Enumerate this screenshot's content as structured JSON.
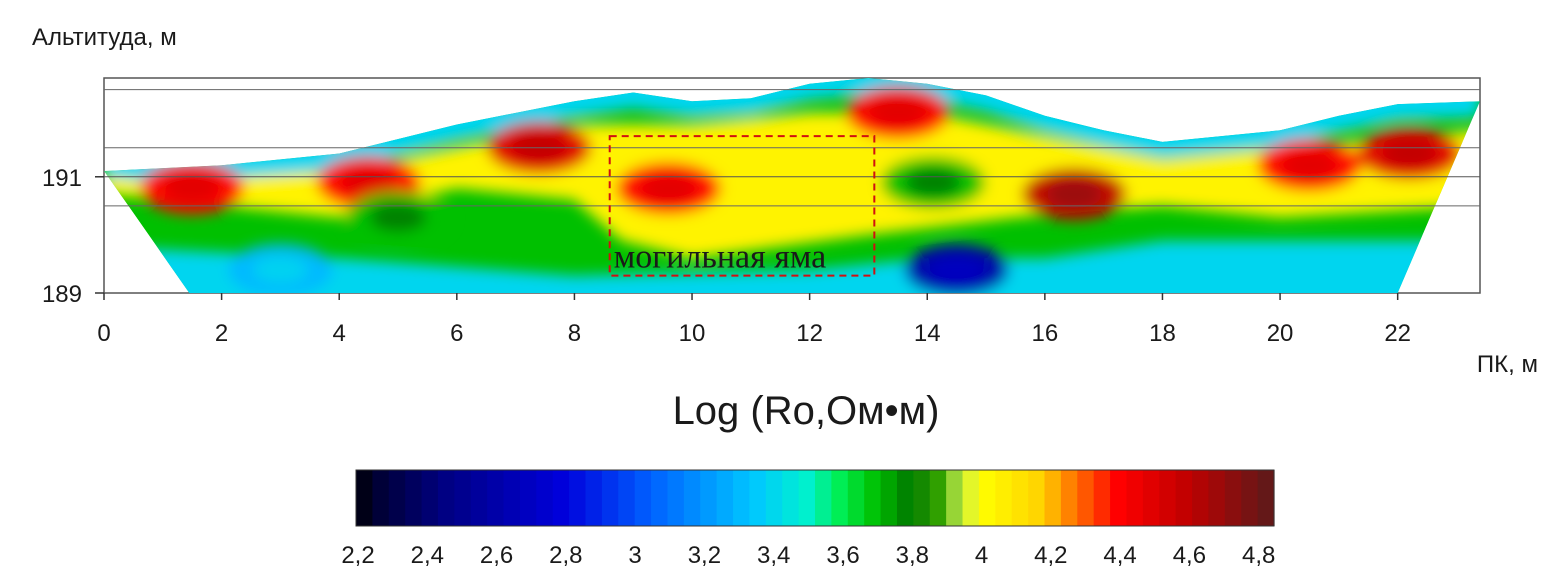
{
  "chart_data": {
    "type": "heatmap",
    "ylabel": "Альтитуда, м",
    "xlabel": "ПК, м",
    "x_ticks": [
      0,
      2,
      4,
      6,
      8,
      10,
      12,
      14,
      16,
      18,
      20,
      22
    ],
    "y_ticks": [
      189,
      191
    ],
    "xlim": [
      0,
      23.4
    ],
    "ylim": [
      189,
      192.7
    ],
    "grid": true,
    "section_outline": {
      "top": [
        [
          0,
          191.1
        ],
        [
          2,
          191.2
        ],
        [
          4,
          191.4
        ],
        [
          6,
          191.9
        ],
        [
          8,
          192.3
        ],
        [
          9,
          192.45
        ],
        [
          10,
          192.3
        ],
        [
          11,
          192.35
        ],
        [
          12,
          192.6
        ],
        [
          13,
          192.7
        ],
        [
          14,
          192.6
        ],
        [
          15,
          192.4
        ],
        [
          16,
          192.05
        ],
        [
          17,
          191.8
        ],
        [
          18,
          191.6
        ],
        [
          20,
          191.8
        ],
        [
          21,
          192.05
        ],
        [
          22,
          192.25
        ],
        [
          23.4,
          192.3
        ]
      ],
      "bottom_left": [
        1.45,
        189
      ],
      "bottom_right": [
        22,
        189
      ]
    },
    "anomalies": [
      {
        "x": 1.5,
        "y": 190.8,
        "value": 4.4
      },
      {
        "x": 4.5,
        "y": 190.9,
        "value": 4.4
      },
      {
        "x": 7.4,
        "y": 191.5,
        "value": 4.5
      },
      {
        "x": 9.6,
        "y": 190.8,
        "value": 4.4
      },
      {
        "x": 13.5,
        "y": 192.1,
        "value": 4.4
      },
      {
        "x": 16.5,
        "y": 190.7,
        "value": 4.6
      },
      {
        "x": 20.5,
        "y": 191.2,
        "value": 4.4
      },
      {
        "x": 22.2,
        "y": 191.4,
        "value": 4.5
      },
      {
        "x": 14.1,
        "y": 190.9,
        "value": 3.7
      },
      {
        "x": 5,
        "y": 190.3,
        "value": 3.7
      },
      {
        "x": 3,
        "y": 189.4,
        "value": 3.3
      },
      {
        "x": 14.5,
        "y": 189.4,
        "value": 2.6
      }
    ],
    "annotation": {
      "label": "могильная яма",
      "x_range": [
        8.6,
        13.1
      ],
      "y_range": [
        189.3,
        191.7
      ]
    },
    "colorbar": {
      "title": "Log (Ro,Ом•м)",
      "tick_labels": [
        "2,2",
        "2,4",
        "2,6",
        "2,8",
        "3",
        "3,2",
        "3,4",
        "3,6",
        "3,8",
        "4",
        "4,2",
        "4,4",
        "4,6",
        "4,8"
      ],
      "range": [
        2.2,
        4.85
      ],
      "stops": [
        {
          "v": 2.2,
          "c": "#000000"
        },
        {
          "v": 2.25,
          "c": "#000030"
        },
        {
          "v": 2.45,
          "c": "#000080"
        },
        {
          "v": 2.8,
          "c": "#0000dc"
        },
        {
          "v": 3.05,
          "c": "#0060ff"
        },
        {
          "v": 3.35,
          "c": "#00c8ff"
        },
        {
          "v": 3.5,
          "c": "#00f0d0"
        },
        {
          "v": 3.6,
          "c": "#00ee50"
        },
        {
          "v": 3.7,
          "c": "#00c000"
        },
        {
          "v": 3.8,
          "c": "#007a00"
        },
        {
          "v": 3.88,
          "c": "#30a000"
        },
        {
          "v": 3.95,
          "c": "#c8ee50"
        },
        {
          "v": 4.0,
          "c": "#ffff00"
        },
        {
          "v": 4.18,
          "c": "#ffd200"
        },
        {
          "v": 4.25,
          "c": "#ff8a00"
        },
        {
          "v": 4.4,
          "c": "#ff0000"
        },
        {
          "v": 4.6,
          "c": "#c00000"
        },
        {
          "v": 4.85,
          "c": "#5a1a1a"
        }
      ]
    }
  }
}
